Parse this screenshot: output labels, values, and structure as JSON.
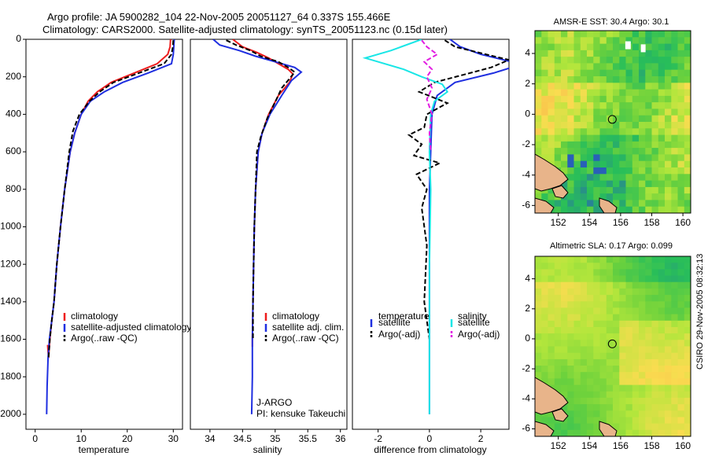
{
  "header": {
    "title_line1": "Argo profile: JA 5900282_104 22-Nov-2005 20051127_64 0.337S 155.466E",
    "title_line2": "Climatology: CARS2000. Satellite-adjusted climatology: synTS_20051123.nc (0.15d later)"
  },
  "credit": "CSIRO 29-Nov-2005 08:32:13",
  "colors": {
    "climatology": "#ee1c1c",
    "satellite": "#1f2fe0",
    "argo": "#000000",
    "satellite_salinity": "#19e6e6",
    "argo_salinity_adj": "#e21de2"
  },
  "chart_data": [
    {
      "id": "temperature",
      "type": "line",
      "xlabel": "temperature",
      "ylabel": "",
      "xlim": [
        -2,
        32
      ],
      "ylim": [
        2080,
        0
      ],
      "xticks": [
        0,
        10,
        20,
        30
      ],
      "yticks": [
        0,
        200,
        400,
        600,
        800,
        1000,
        1200,
        1400,
        1600,
        1800,
        2000
      ],
      "series": [
        {
          "name": "climatology",
          "color": "#ee1c1c",
          "dash": "",
          "x": [
            29.4,
            29.3,
            28.8,
            26.5,
            21.5,
            16.5,
            13.5,
            11.5,
            10.0,
            8.6,
            7.6,
            6.4,
            5.5,
            4.7,
            4.1,
            3.6,
            3.2,
            2.9,
            2.7
          ],
          "y": [
            0,
            40,
            80,
            130,
            180,
            230,
            280,
            330,
            400,
            500,
            600,
            800,
            1000,
            1200,
            1400,
            1500,
            1600,
            1700,
            1630
          ]
        },
        {
          "name": "satellite-adjusted climatology",
          "color": "#1f2fe0",
          "dash": "",
          "x": [
            30.2,
            30.1,
            30.0,
            29.6,
            24.5,
            19.0,
            15.0,
            12.0,
            10.0,
            8.6,
            7.6,
            6.4,
            5.5,
            4.7,
            4.1,
            3.6,
            3.1,
            2.8,
            2.6,
            2.5
          ],
          "y": [
            0,
            40,
            80,
            130,
            180,
            230,
            280,
            330,
            400,
            500,
            600,
            800,
            1000,
            1200,
            1400,
            1500,
            1600,
            1700,
            1850,
            2000
          ]
        },
        {
          "name": "Argo(..raw -QC)",
          "color": "#000000",
          "dash": "6,3",
          "x": [
            30.0,
            29.9,
            29.6,
            28.0,
            22.5,
            17.0,
            14.0,
            11.8,
            9.6,
            8.2,
            7.4,
            6.4,
            5.5,
            4.7,
            4.1,
            3.6,
            3.2,
            2.9
          ],
          "y": [
            5,
            40,
            80,
            130,
            180,
            230,
            280,
            330,
            400,
            490,
            600,
            800,
            1000,
            1200,
            1400,
            1500,
            1600,
            1700
          ]
        }
      ],
      "legend": {
        "location": "bottom-right",
        "entries": [
          "climatology",
          "satellite-adjusted climatology",
          "Argo(..raw -QC)"
        ]
      }
    },
    {
      "id": "salinity",
      "type": "line",
      "xlabel": "salinity",
      "ylabel": "",
      "xlim": [
        33.7,
        36.1
      ],
      "ylim": [
        2080,
        0
      ],
      "xticks": [
        34,
        34.5,
        35,
        35.5,
        36
      ],
      "series": [
        {
          "name": "climatology",
          "color": "#ee1c1c",
          "dash": "",
          "x": [
            34.35,
            34.5,
            34.72,
            34.9,
            35.05,
            35.2,
            35.27,
            35.22,
            35.05,
            34.9,
            34.8,
            34.74,
            34.7,
            34.68,
            34.67,
            34.66,
            34.65,
            34.65
          ],
          "y": [
            0,
            40,
            70,
            100,
            130,
            160,
            185,
            230,
            300,
            400,
            500,
            600,
            800,
            1000,
            1200,
            1400,
            1600,
            1640
          ]
        },
        {
          "name": "satellite adj. clim.",
          "color": "#1f2fe0",
          "dash": "",
          "x": [
            34.05,
            34.15,
            34.45,
            34.7,
            35.0,
            35.3,
            35.4,
            35.25,
            35.1,
            34.92,
            34.8,
            34.74,
            34.7,
            34.68,
            34.67,
            34.66,
            34.65,
            34.65,
            34.64
          ],
          "y": [
            0,
            30,
            60,
            90,
            120,
            150,
            175,
            220,
            300,
            400,
            500,
            600,
            800,
            1000,
            1200,
            1400,
            1600,
            1800,
            2000
          ]
        },
        {
          "name": "Argo(..raw -QC)",
          "color": "#000000",
          "dash": "6,3",
          "x": [
            34.25,
            34.4,
            34.62,
            34.78,
            35.05,
            35.2,
            35.3,
            35.22,
            35.1,
            35.02,
            34.88,
            34.78,
            34.72,
            34.7,
            34.68,
            34.67,
            34.66,
            34.66
          ],
          "y": [
            5,
            30,
            60,
            90,
            120,
            150,
            175,
            210,
            260,
            320,
            420,
            520,
            600,
            800,
            1000,
            1200,
            1400,
            1600
          ]
        }
      ],
      "legend": {
        "location": "bottom-right",
        "entries": [
          "climatology",
          "satellite adj. clim.",
          "Argo(..raw -QC)"
        ]
      },
      "annotation": {
        "line1": "J-ARGO",
        "line2": "PI: kensuke Takeuchi"
      }
    },
    {
      "id": "difference",
      "type": "line",
      "xlabel": "difference from climatology",
      "ylabel": "",
      "xlim": [
        -3,
        3.1
      ],
      "ylim": [
        2080,
        0
      ],
      "xticks": [
        -2,
        0,
        2
      ],
      "series": [
        {
          "name": "temperature satellite",
          "color": "#1f2fe0",
          "dash": "",
          "x": [
            0.8,
            1.2,
            2.0,
            3.2,
            3.2,
            2.5,
            1.0,
            0.3,
            0.1,
            0.05,
            0.0,
            0.0,
            0.0,
            0.0
          ],
          "y": [
            0,
            40,
            80,
            120,
            150,
            180,
            230,
            300,
            400,
            600,
            800,
            1200,
            1600,
            2000
          ]
        },
        {
          "name": "temperature Argo(-adj)",
          "color": "#000000",
          "dash": "6,3",
          "x": [
            0.6,
            1.0,
            2.2,
            3.1,
            2.4,
            1.3,
            0.2,
            -0.4,
            0.7,
            -0.1,
            -0.2,
            -0.8,
            -0.3,
            -0.6,
            0.4,
            -0.5,
            -0.1,
            -0.3,
            -0.1,
            -0.2,
            0.0
          ],
          "y": [
            5,
            40,
            80,
            110,
            150,
            190,
            230,
            280,
            340,
            400,
            470,
            510,
            560,
            620,
            660,
            720,
            800,
            900,
            1100,
            1400,
            1600
          ]
        },
        {
          "name": "salinity satellite",
          "color": "#19e6e6",
          "dash": "",
          "x": [
            -0.3,
            -1.5,
            -2.5,
            -1.0,
            -0.3,
            0.5,
            0.7,
            0.2,
            0.05,
            0.0,
            0.05,
            0.0,
            0.0,
            0.0
          ],
          "y": [
            0,
            60,
            100,
            160,
            200,
            240,
            280,
            330,
            400,
            600,
            800,
            1200,
            1600,
            2000
          ]
        },
        {
          "name": "salinity Argo(-adj)",
          "color": "#e21de2",
          "dash": "6,3",
          "x": [
            -0.3,
            -0.1,
            0.3,
            -0.2,
            0.1,
            -0.1,
            0.1,
            -0.1,
            0.1,
            0.0,
            0.05
          ],
          "y": [
            5,
            40,
            80,
            120,
            160,
            200,
            260,
            320,
            400,
            500,
            600
          ]
        }
      ],
      "legend": {
        "location": "bottom",
        "entries": [
          "temperature",
          "satellite",
          "Argo(-adj)",
          "salinity",
          "satellite",
          "Argo(-adj)"
        ]
      }
    },
    {
      "id": "sst_map",
      "type": "heatmap",
      "title": "AMSR-E SST: 30.4 Argo: 30.1",
      "xlim": [
        150.5,
        160.5
      ],
      "ylim": [
        -6.5,
        5.5
      ],
      "xticks": [
        152,
        154,
        156,
        158,
        160
      ],
      "yticks": [
        4,
        2,
        0,
        -2,
        -4,
        -6
      ],
      "float_position": {
        "lon": 155.466,
        "lat": -0.337
      }
    },
    {
      "id": "sla_map",
      "type": "heatmap",
      "title": "Altimetric SLA: 0.17 Argo: 0.099",
      "xlim": [
        150.5,
        160.5
      ],
      "ylim": [
        -6.5,
        5.5
      ],
      "xticks": [
        152,
        154,
        156,
        158,
        160
      ],
      "yticks": [
        4,
        2,
        0,
        -2,
        -4,
        -6
      ],
      "float_position": {
        "lon": 155.466,
        "lat": -0.337
      }
    }
  ]
}
